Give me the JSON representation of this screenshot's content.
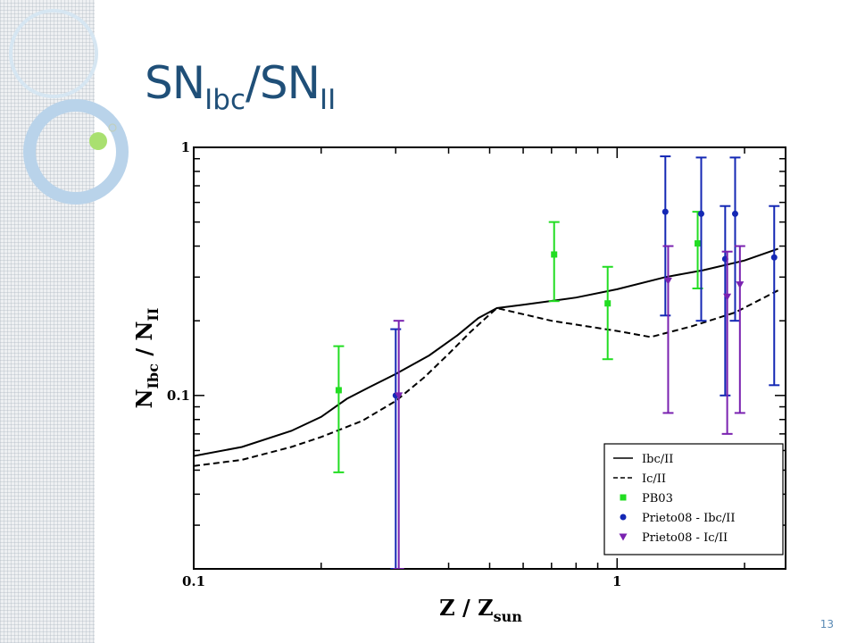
{
  "slide": {
    "title_main_1": "SN",
    "title_sub_1": "Ibc",
    "title_sep": "/",
    "title_main_2": "SN",
    "title_sub_2": "II",
    "page_number": "13",
    "accent_color": "#1f4f78"
  },
  "chart_data": {
    "type": "scatter",
    "xscale": "log",
    "yscale": "log",
    "xlim": [
      0.1,
      2.5
    ],
    "ylim": [
      0.02,
      1
    ],
    "xlabel": "Z / Z",
    "xlabel_sub": "sun",
    "ylabel": "N",
    "ylabel_sub": "Ibc",
    "ylabel_sep": " / N",
    "ylabel_sub2": "II",
    "x_ticks": [
      {
        "v": 0.1,
        "label": "0.1"
      },
      {
        "v": 1,
        "label": "1"
      }
    ],
    "y_ticks": [
      {
        "v": 0.1,
        "label": "0.1"
      },
      {
        "v": 1,
        "label": "1"
      }
    ],
    "lines": [
      {
        "name": "Ibc/II",
        "style": "solid",
        "color": "#000000",
        "points": [
          [
            0.1,
            0.057
          ],
          [
            0.13,
            0.062
          ],
          [
            0.17,
            0.072
          ],
          [
            0.2,
            0.082
          ],
          [
            0.23,
            0.097
          ],
          [
            0.26,
            0.108
          ],
          [
            0.3,
            0.122
          ],
          [
            0.36,
            0.145
          ],
          [
            0.42,
            0.175
          ],
          [
            0.47,
            0.205
          ],
          [
            0.52,
            0.225
          ],
          [
            0.6,
            0.232
          ],
          [
            0.8,
            0.248
          ],
          [
            1.0,
            0.268
          ],
          [
            1.3,
            0.3
          ],
          [
            1.6,
            0.32
          ],
          [
            2.0,
            0.35
          ],
          [
            2.4,
            0.39
          ]
        ]
      },
      {
        "name": "Ic/II",
        "style": "dashed",
        "color": "#000000",
        "points": [
          [
            0.1,
            0.052
          ],
          [
            0.13,
            0.055
          ],
          [
            0.17,
            0.062
          ],
          [
            0.2,
            0.068
          ],
          [
            0.25,
            0.079
          ],
          [
            0.3,
            0.095
          ],
          [
            0.35,
            0.118
          ],
          [
            0.4,
            0.147
          ],
          [
            0.45,
            0.18
          ],
          [
            0.5,
            0.212
          ],
          [
            0.52,
            0.225
          ],
          [
            0.7,
            0.2
          ],
          [
            1.0,
            0.182
          ],
          [
            1.2,
            0.172
          ],
          [
            1.5,
            0.19
          ],
          [
            1.9,
            0.216
          ],
          [
            2.4,
            0.265
          ]
        ]
      }
    ],
    "series": [
      {
        "name": "PB03",
        "marker": "square",
        "color": "#22dd22",
        "points": [
          {
            "x": 0.22,
            "y": 0.105,
            "lo": 0.049,
            "hi": 0.158
          },
          {
            "x": 0.71,
            "y": 0.37,
            "lo": 0.24,
            "hi": 0.5
          },
          {
            "x": 0.95,
            "y": 0.235,
            "lo": 0.14,
            "hi": 0.33
          },
          {
            "x": 1.55,
            "y": 0.41,
            "lo": 0.27,
            "hi": 0.55
          }
        ]
      },
      {
        "name": "Prieto08 - Ibc/II",
        "marker": "circle",
        "color": "#1428b4",
        "points": [
          {
            "x": 0.3,
            "y": 0.1,
            "lo": 0.02,
            "hi": 0.185
          },
          {
            "x": 1.3,
            "y": 0.55,
            "lo": 0.21,
            "hi": 0.92
          },
          {
            "x": 1.58,
            "y": 0.54,
            "lo": 0.2,
            "hi": 0.91
          },
          {
            "x": 1.9,
            "y": 0.54,
            "lo": 0.2,
            "hi": 0.91
          },
          {
            "x": 2.35,
            "y": 0.36,
            "lo": 0.11,
            "hi": 0.58
          },
          {
            "x": 1.8,
            "y": 0.355,
            "lo": 0.1,
            "hi": 0.58
          }
        ]
      },
      {
        "name": "Prieto08 - Ic/II",
        "marker": "triangle",
        "color": "#7a22b0",
        "points": [
          {
            "x": 0.305,
            "y": 0.1,
            "lo": 0.02,
            "hi": 0.2
          },
          {
            "x": 1.32,
            "y": 0.29,
            "lo": 0.085,
            "hi": 0.4
          },
          {
            "x": 1.82,
            "y": 0.25,
            "lo": 0.07,
            "hi": 0.38
          },
          {
            "x": 1.95,
            "y": 0.28,
            "lo": 0.085,
            "hi": 0.4
          }
        ]
      }
    ],
    "legend": {
      "position": "bottom-right",
      "entries": [
        {
          "label": "Ibc/II",
          "kind": "solid"
        },
        {
          "label": "Ic/II",
          "kind": "dashed"
        },
        {
          "label": "PB03",
          "kind": "square",
          "color": "#22dd22"
        },
        {
          "label": "Prieto08 - Ibc/II",
          "kind": "circle",
          "color": "#1428b4"
        },
        {
          "label": "Prieto08 - Ic/II",
          "kind": "triangle",
          "color": "#7a22b0"
        }
      ]
    }
  }
}
